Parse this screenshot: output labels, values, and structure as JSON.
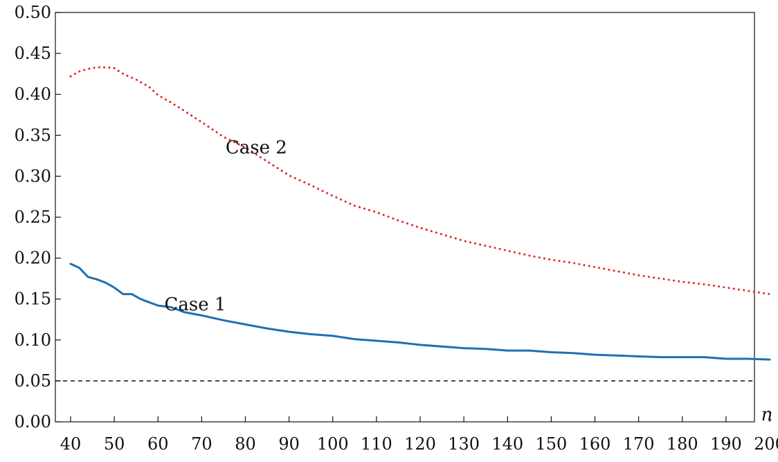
{
  "chart_data": {
    "type": "line",
    "title": "",
    "xlabel": "n",
    "ylabel": "",
    "xlim": [
      40,
      200
    ],
    "ylim": [
      0.0,
      0.5
    ],
    "x_ticks": [
      40,
      50,
      60,
      70,
      80,
      90,
      100,
      110,
      120,
      130,
      140,
      150,
      160,
      170,
      180,
      190,
      200
    ],
    "x_tick_labels": [
      "40",
      "50",
      "60",
      "70",
      "80",
      "90",
      "100",
      "110",
      "120",
      "130",
      "140",
      "150",
      "160",
      "170",
      "180",
      "190",
      "200"
    ],
    "y_ticks": [
      0.0,
      0.05,
      0.1,
      0.15,
      0.2,
      0.25,
      0.3,
      0.35,
      0.4,
      0.45,
      0.5
    ],
    "y_tick_labels": [
      "0.00",
      "0.05",
      "0.10",
      "0.15",
      "0.20",
      "0.25",
      "0.30",
      "0.35",
      "0.40",
      "0.45",
      "0.50"
    ],
    "reference_line": {
      "y": 0.05,
      "style": "dashed",
      "color": "#111111"
    },
    "series": [
      {
        "name": "Case 1",
        "color": "#1f6fb2",
        "style": "solid",
        "points": [
          {
            "x": 40,
            "y": 0.193
          },
          {
            "x": 42,
            "y": 0.188
          },
          {
            "x": 44,
            "y": 0.177
          },
          {
            "x": 46,
            "y": 0.174
          },
          {
            "x": 48,
            "y": 0.17
          },
          {
            "x": 50,
            "y": 0.164
          },
          {
            "x": 52,
            "y": 0.156
          },
          {
            "x": 54,
            "y": 0.156
          },
          {
            "x": 56,
            "y": 0.15
          },
          {
            "x": 58,
            "y": 0.146
          },
          {
            "x": 60,
            "y": 0.142
          },
          {
            "x": 63,
            "y": 0.14
          },
          {
            "x": 66,
            "y": 0.134
          },
          {
            "x": 70,
            "y": 0.13
          },
          {
            "x": 75,
            "y": 0.124
          },
          {
            "x": 80,
            "y": 0.119
          },
          {
            "x": 85,
            "y": 0.114
          },
          {
            "x": 90,
            "y": 0.11
          },
          {
            "x": 95,
            "y": 0.107
          },
          {
            "x": 100,
            "y": 0.105
          },
          {
            "x": 105,
            "y": 0.101
          },
          {
            "x": 110,
            "y": 0.099
          },
          {
            "x": 115,
            "y": 0.097
          },
          {
            "x": 120,
            "y": 0.094
          },
          {
            "x": 125,
            "y": 0.092
          },
          {
            "x": 130,
            "y": 0.09
          },
          {
            "x": 135,
            "y": 0.089
          },
          {
            "x": 140,
            "y": 0.087
          },
          {
            "x": 145,
            "y": 0.087
          },
          {
            "x": 150,
            "y": 0.085
          },
          {
            "x": 155,
            "y": 0.084
          },
          {
            "x": 160,
            "y": 0.082
          },
          {
            "x": 165,
            "y": 0.081
          },
          {
            "x": 170,
            "y": 0.08
          },
          {
            "x": 175,
            "y": 0.079
          },
          {
            "x": 180,
            "y": 0.079
          },
          {
            "x": 185,
            "y": 0.079
          },
          {
            "x": 190,
            "y": 0.077
          },
          {
            "x": 195,
            "y": 0.077
          },
          {
            "x": 200,
            "y": 0.076
          }
        ]
      },
      {
        "name": "Case 2",
        "color": "#e02424",
        "style": "dotted",
        "points": [
          {
            "x": 40,
            "y": 0.422
          },
          {
            "x": 42,
            "y": 0.428
          },
          {
            "x": 44,
            "y": 0.431
          },
          {
            "x": 46,
            "y": 0.433
          },
          {
            "x": 48,
            "y": 0.433
          },
          {
            "x": 50,
            "y": 0.432
          },
          {
            "x": 52,
            "y": 0.425
          },
          {
            "x": 55,
            "y": 0.418
          },
          {
            "x": 58,
            "y": 0.409
          },
          {
            "x": 60,
            "y": 0.399
          },
          {
            "x": 63,
            "y": 0.39
          },
          {
            "x": 66,
            "y": 0.38
          },
          {
            "x": 70,
            "y": 0.366
          },
          {
            "x": 75,
            "y": 0.348
          },
          {
            "x": 80,
            "y": 0.335
          },
          {
            "x": 85,
            "y": 0.318
          },
          {
            "x": 90,
            "y": 0.301
          },
          {
            "x": 95,
            "y": 0.289
          },
          {
            "x": 100,
            "y": 0.276
          },
          {
            "x": 105,
            "y": 0.264
          },
          {
            "x": 110,
            "y": 0.256
          },
          {
            "x": 115,
            "y": 0.246
          },
          {
            "x": 120,
            "y": 0.237
          },
          {
            "x": 125,
            "y": 0.229
          },
          {
            "x": 130,
            "y": 0.221
          },
          {
            "x": 135,
            "y": 0.215
          },
          {
            "x": 140,
            "y": 0.209
          },
          {
            "x": 145,
            "y": 0.203
          },
          {
            "x": 150,
            "y": 0.198
          },
          {
            "x": 155,
            "y": 0.194
          },
          {
            "x": 160,
            "y": 0.189
          },
          {
            "x": 165,
            "y": 0.184
          },
          {
            "x": 170,
            "y": 0.179
          },
          {
            "x": 175,
            "y": 0.175
          },
          {
            "x": 180,
            "y": 0.171
          },
          {
            "x": 185,
            "y": 0.168
          },
          {
            "x": 190,
            "y": 0.164
          },
          {
            "x": 195,
            "y": 0.16
          },
          {
            "x": 200,
            "y": 0.156
          }
        ]
      }
    ]
  }
}
